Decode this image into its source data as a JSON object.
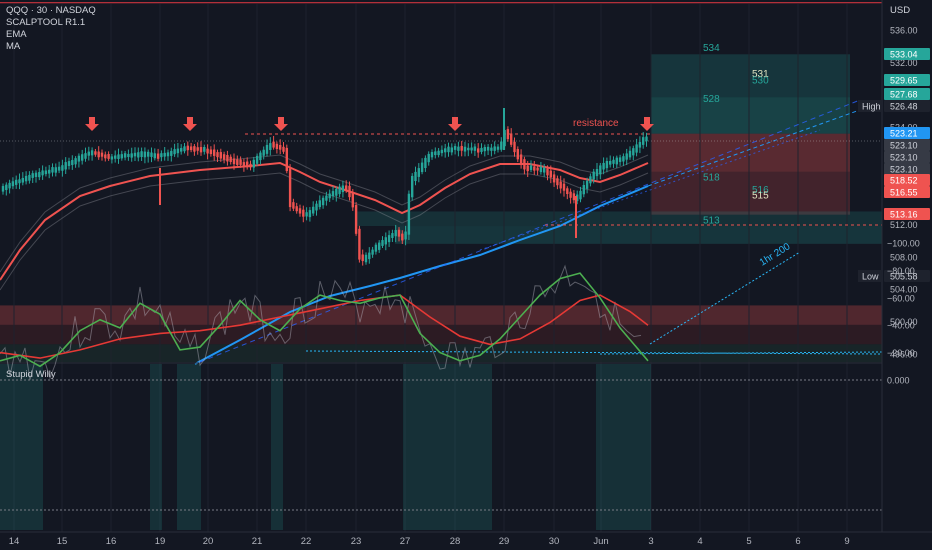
{
  "header": {
    "symbol_line": "QQQ · 30 · NASDAQ",
    "indicators": [
      "SCALPTOOL R1.1",
      "EMA",
      "MA"
    ],
    "currency": "USD"
  },
  "oscillator": {
    "label": "Stupid Willy"
  },
  "colors": {
    "background": "#131722",
    "up": "#26a69a",
    "down": "#ef5350",
    "ema": "#ef5350",
    "ma": "#2196f3",
    "osc_fast": "#4caf50",
    "osc_slow": "#e53935"
  },
  "chart_data": {
    "type": "candlestick",
    "price_axis": {
      "ticks": [
        536.0,
        532.0,
        524.0,
        520.0,
        516.0,
        512.0,
        508.0,
        504.0,
        500.0,
        496.0
      ],
      "ylim": [
        494.5,
        537.0
      ]
    },
    "price_labels": [
      {
        "value": 533.04,
        "text": "533.04",
        "color": "#26a69a"
      },
      {
        "value": 529.65,
        "text": "529.65",
        "color": "#26a69a"
      },
      {
        "value": 527.68,
        "text": "527.68",
        "color": "#26a69a"
      },
      {
        "value": 526.48,
        "text": "526.48",
        "color": "#1e222d",
        "tag": "High"
      },
      {
        "value": 523.21,
        "text": "523.21",
        "color": "#2196f3"
      },
      {
        "value": 523.1,
        "text": "523.10",
        "color": "#363a45"
      },
      {
        "value": 523.1,
        "text": "523.10",
        "color": "#363a45"
      },
      {
        "value": 523.1,
        "text": "523.10",
        "color": "#363a45"
      },
      {
        "value": 518.52,
        "text": "518.52",
        "color": "#ef5350"
      },
      {
        "value": 516.55,
        "text": "516.55",
        "color": "#ef5350"
      },
      {
        "value": 513.16,
        "text": "513.16",
        "color": "#ef5350"
      },
      {
        "value": 505.58,
        "text": "505.58",
        "color": "#1e222d",
        "tag": "Low"
      }
    ],
    "x_ticks": [
      "14",
      "15",
      "16",
      "19",
      "20",
      "21",
      "22",
      "23",
      "27",
      "28",
      "29",
      "30",
      "Jun",
      "3",
      "4",
      "5",
      "6",
      "9"
    ],
    "levels": [
      {
        "text": "534",
        "value": 533.9
      },
      {
        "text": "531",
        "value": 530.7
      },
      {
        "text": "530",
        "value": 529.9
      },
      {
        "text": "528",
        "value": 527.6
      },
      {
        "text": "518",
        "value": 517.9
      },
      {
        "text": "516",
        "value": 516.4
      },
      {
        "text": "515",
        "value": 515.7
      },
      {
        "text": "513",
        "value": 512.6
      }
    ],
    "annotations": [
      {
        "text": "resistance",
        "value": 524.0
      },
      {
        "text": "1hr 200",
        "value": 507.0
      }
    ],
    "signal_arrows": [
      "15",
      "19",
      "21",
      "28",
      "Jun"
    ],
    "oscillator_axis": {
      "ticks": [
        "0.000",
        "−20.00",
        "−40.00",
        "−60.00",
        "−80.00",
        "−100.00"
      ],
      "ylim": [
        -104,
        3
      ]
    }
  }
}
